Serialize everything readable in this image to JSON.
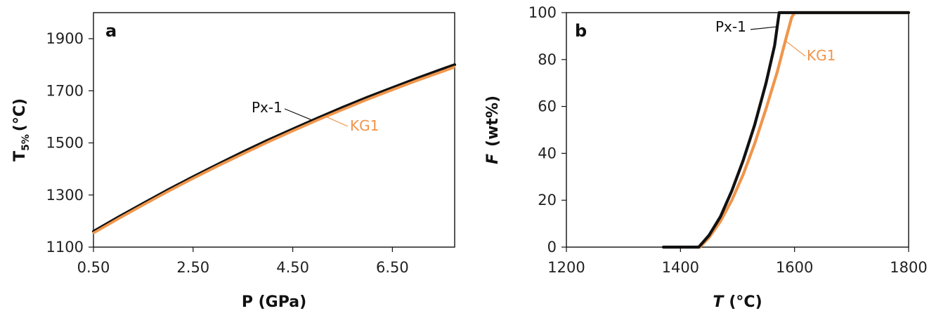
{
  "chart_data": [
    {
      "type": "line",
      "panel_label": "a",
      "xlabel": "P (GPa)",
      "ylabel_main": "T",
      "ylabel_sub": "5%",
      "ylabel_unit": "(°C)",
      "xlim": [
        0.5,
        7.75
      ],
      "ylim": [
        1100,
        2000
      ],
      "xticks": [
        0.5,
        2.5,
        4.5,
        6.5
      ],
      "xtick_labels": [
        "0.50",
        "2.50",
        "4.50",
        "6.50"
      ],
      "yticks": [
        1100,
        1300,
        1500,
        1700,
        1900
      ],
      "ytick_labels": [
        "1100",
        "1300",
        "1500",
        "1700",
        "1900"
      ],
      "grid": false,
      "series": [
        {
          "name": "Px-1",
          "color": "#111111",
          "x": [
            0.5,
            1.0,
            1.5,
            2.0,
            2.5,
            3.0,
            3.5,
            4.0,
            4.5,
            5.0,
            5.5,
            6.0,
            6.5,
            7.0,
            7.5,
            7.75
          ],
          "y": [
            1160,
            1215,
            1268,
            1320,
            1370,
            1418,
            1465,
            1510,
            1553,
            1595,
            1636,
            1675,
            1712,
            1748,
            1783,
            1800
          ]
        },
        {
          "name": "KG1",
          "color": "#f0954a",
          "x": [
            0.5,
            1.0,
            1.5,
            2.0,
            2.5,
            3.0,
            3.5,
            4.0,
            4.5,
            5.0,
            5.5,
            6.0,
            6.5,
            7.0,
            7.5,
            7.75
          ],
          "y": [
            1156,
            1211,
            1264,
            1316,
            1366,
            1414,
            1460,
            1505,
            1548,
            1590,
            1630,
            1669,
            1706,
            1742,
            1776,
            1793
          ]
        }
      ],
      "annotations": [
        {
          "text": "Px-1",
          "series": "Px-1"
        },
        {
          "text": "KG1",
          "series": "KG1"
        }
      ]
    },
    {
      "type": "line",
      "panel_label": "b",
      "xlabel_main": "T",
      "xlabel_unit": "(°C)",
      "ylabel_main": "F",
      "ylabel_unit": "(wt%)",
      "xlim": [
        1200,
        1800
      ],
      "ylim": [
        0,
        100
      ],
      "xticks": [
        1200,
        1400,
        1600,
        1800
      ],
      "xtick_labels": [
        "1200",
        "1400",
        "1600",
        "1800"
      ],
      "yticks": [
        0,
        20,
        40,
        60,
        80,
        100
      ],
      "ytick_labels": [
        "0",
        "20",
        "40",
        "60",
        "80",
        "100"
      ],
      "grid": false,
      "series": [
        {
          "name": "KG1",
          "color": "#f0954a",
          "x": [
            1434,
            1450,
            1470,
            1490,
            1510,
            1530,
            1550,
            1570,
            1585,
            1595,
            1600,
            1800
          ],
          "y": [
            0,
            4,
            11,
            20,
            31,
            44,
            59,
            75,
            89,
            98,
            100,
            100
          ]
        },
        {
          "name": "Px-1",
          "color": "#111111",
          "x": [
            1370,
            1432,
            1450,
            1470,
            1490,
            1510,
            1530,
            1550,
            1565,
            1573,
            1800
          ],
          "y": [
            0,
            0,
            5,
            13,
            24,
            37,
            52,
            70,
            86,
            100,
            100
          ]
        }
      ],
      "annotations": [
        {
          "text": "Px-1",
          "series": "Px-1"
        },
        {
          "text": "KG1",
          "series": "KG1"
        }
      ]
    }
  ]
}
